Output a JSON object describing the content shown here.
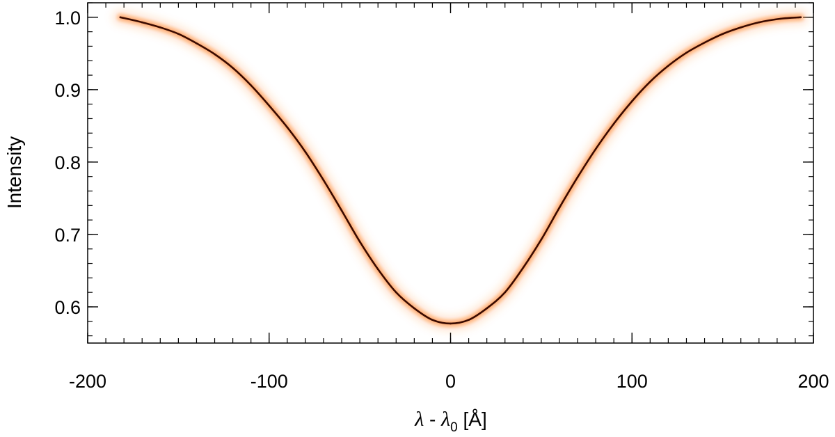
{
  "chart_data": {
    "type": "line",
    "title": "",
    "xlabel": {
      "lambda1": "λ",
      "minus": " - ",
      "lambda2": "λ",
      "subscript": "0",
      "unit": " [Å]"
    },
    "ylabel": "Intensity",
    "xlim": [
      -200,
      200
    ],
    "ylim": [
      0.55,
      1.02
    ],
    "x_ticks": [
      {
        "value": -200,
        "label": "-200"
      },
      {
        "value": -100,
        "label": "-100"
      },
      {
        "value": 0,
        "label": "0"
      },
      {
        "value": 100,
        "label": "100"
      },
      {
        "value": 200,
        "label": "200"
      }
    ],
    "x_minor_step": 10,
    "y_ticks": [
      {
        "value": 0.6,
        "label": "0.6"
      },
      {
        "value": 0.7,
        "label": "0.7"
      },
      {
        "value": 0.8,
        "label": "0.8"
      },
      {
        "value": 0.9,
        "label": "0.9"
      },
      {
        "value": 1.0,
        "label": "1.0"
      }
    ],
    "y_minor_step": 0.02,
    "grid": false,
    "series": [
      {
        "style": "density band",
        "color": "#3a0a00",
        "glow_color": "#ff7a1a",
        "x": [
          -182,
          -170,
          -160,
          -150,
          -140,
          -130,
          -120,
          -110,
          -100,
          -90,
          -80,
          -70,
          -60,
          -50,
          -40,
          -30,
          -20,
          -10,
          0,
          10,
          20,
          30,
          40,
          50,
          60,
          70,
          80,
          90,
          100,
          110,
          120,
          130,
          140,
          150,
          160,
          170,
          182,
          193
        ],
        "y": [
          1.0,
          0.993,
          0.986,
          0.977,
          0.964,
          0.949,
          0.93,
          0.906,
          0.878,
          0.848,
          0.814,
          0.775,
          0.733,
          0.69,
          0.652,
          0.62,
          0.598,
          0.582,
          0.577,
          0.582,
          0.598,
          0.62,
          0.654,
          0.693,
          0.737,
          0.779,
          0.818,
          0.853,
          0.884,
          0.911,
          0.933,
          0.951,
          0.965,
          0.977,
          0.986,
          0.993,
          0.998,
          1.0
        ]
      }
    ]
  }
}
